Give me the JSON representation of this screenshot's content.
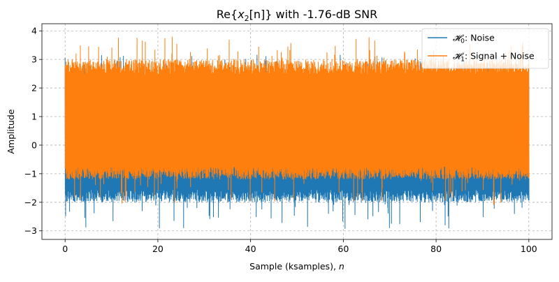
{
  "chart_data": {
    "type": "line",
    "title": "Re{x₂[n]} with -1.76-dB SNR",
    "title_parts": {
      "prefix": "Re{",
      "var": "x",
      "sub": "2",
      "bracket": "[n]",
      "suffix": "} with -1.76-dB SNR"
    },
    "xlabel": "Sample (ksamples), ",
    "xlabel_var": "n",
    "ylabel": "Amplitude",
    "xlim": [
      -5,
      105
    ],
    "ylim": [
      -3.3,
      4.25
    ],
    "xticks": [
      0,
      20,
      40,
      60,
      80,
      100
    ],
    "yticks": [
      -3,
      -2,
      -1,
      0,
      1,
      2,
      3,
      4
    ],
    "grid": true,
    "legend_position": "top-right",
    "series": [
      {
        "name": "𝓗₀: Noise",
        "legend_symbol": "𝓗",
        "legend_sub": "0",
        "legend_text": ": Noise",
        "color": "#1f77b4",
        "x_range": [
          0,
          100
        ],
        "mean": 0,
        "envelope": {
          "typical_max": 2.5,
          "typical_min": -2.0,
          "peak_max": 3.2,
          "peak_min": -2.95
        }
      },
      {
        "name": "𝓗₁: Signal + Noise",
        "legend_symbol": "𝓗",
        "legend_sub": "1",
        "legend_text": ": Signal + Noise",
        "color": "#ff7f0e",
        "x_range": [
          0,
          100
        ],
        "mean": 0.8,
        "envelope": {
          "typical_max": 3.0,
          "typical_min": -1.2,
          "peak_max": 3.8,
          "peak_min": -2.1
        }
      }
    ]
  }
}
